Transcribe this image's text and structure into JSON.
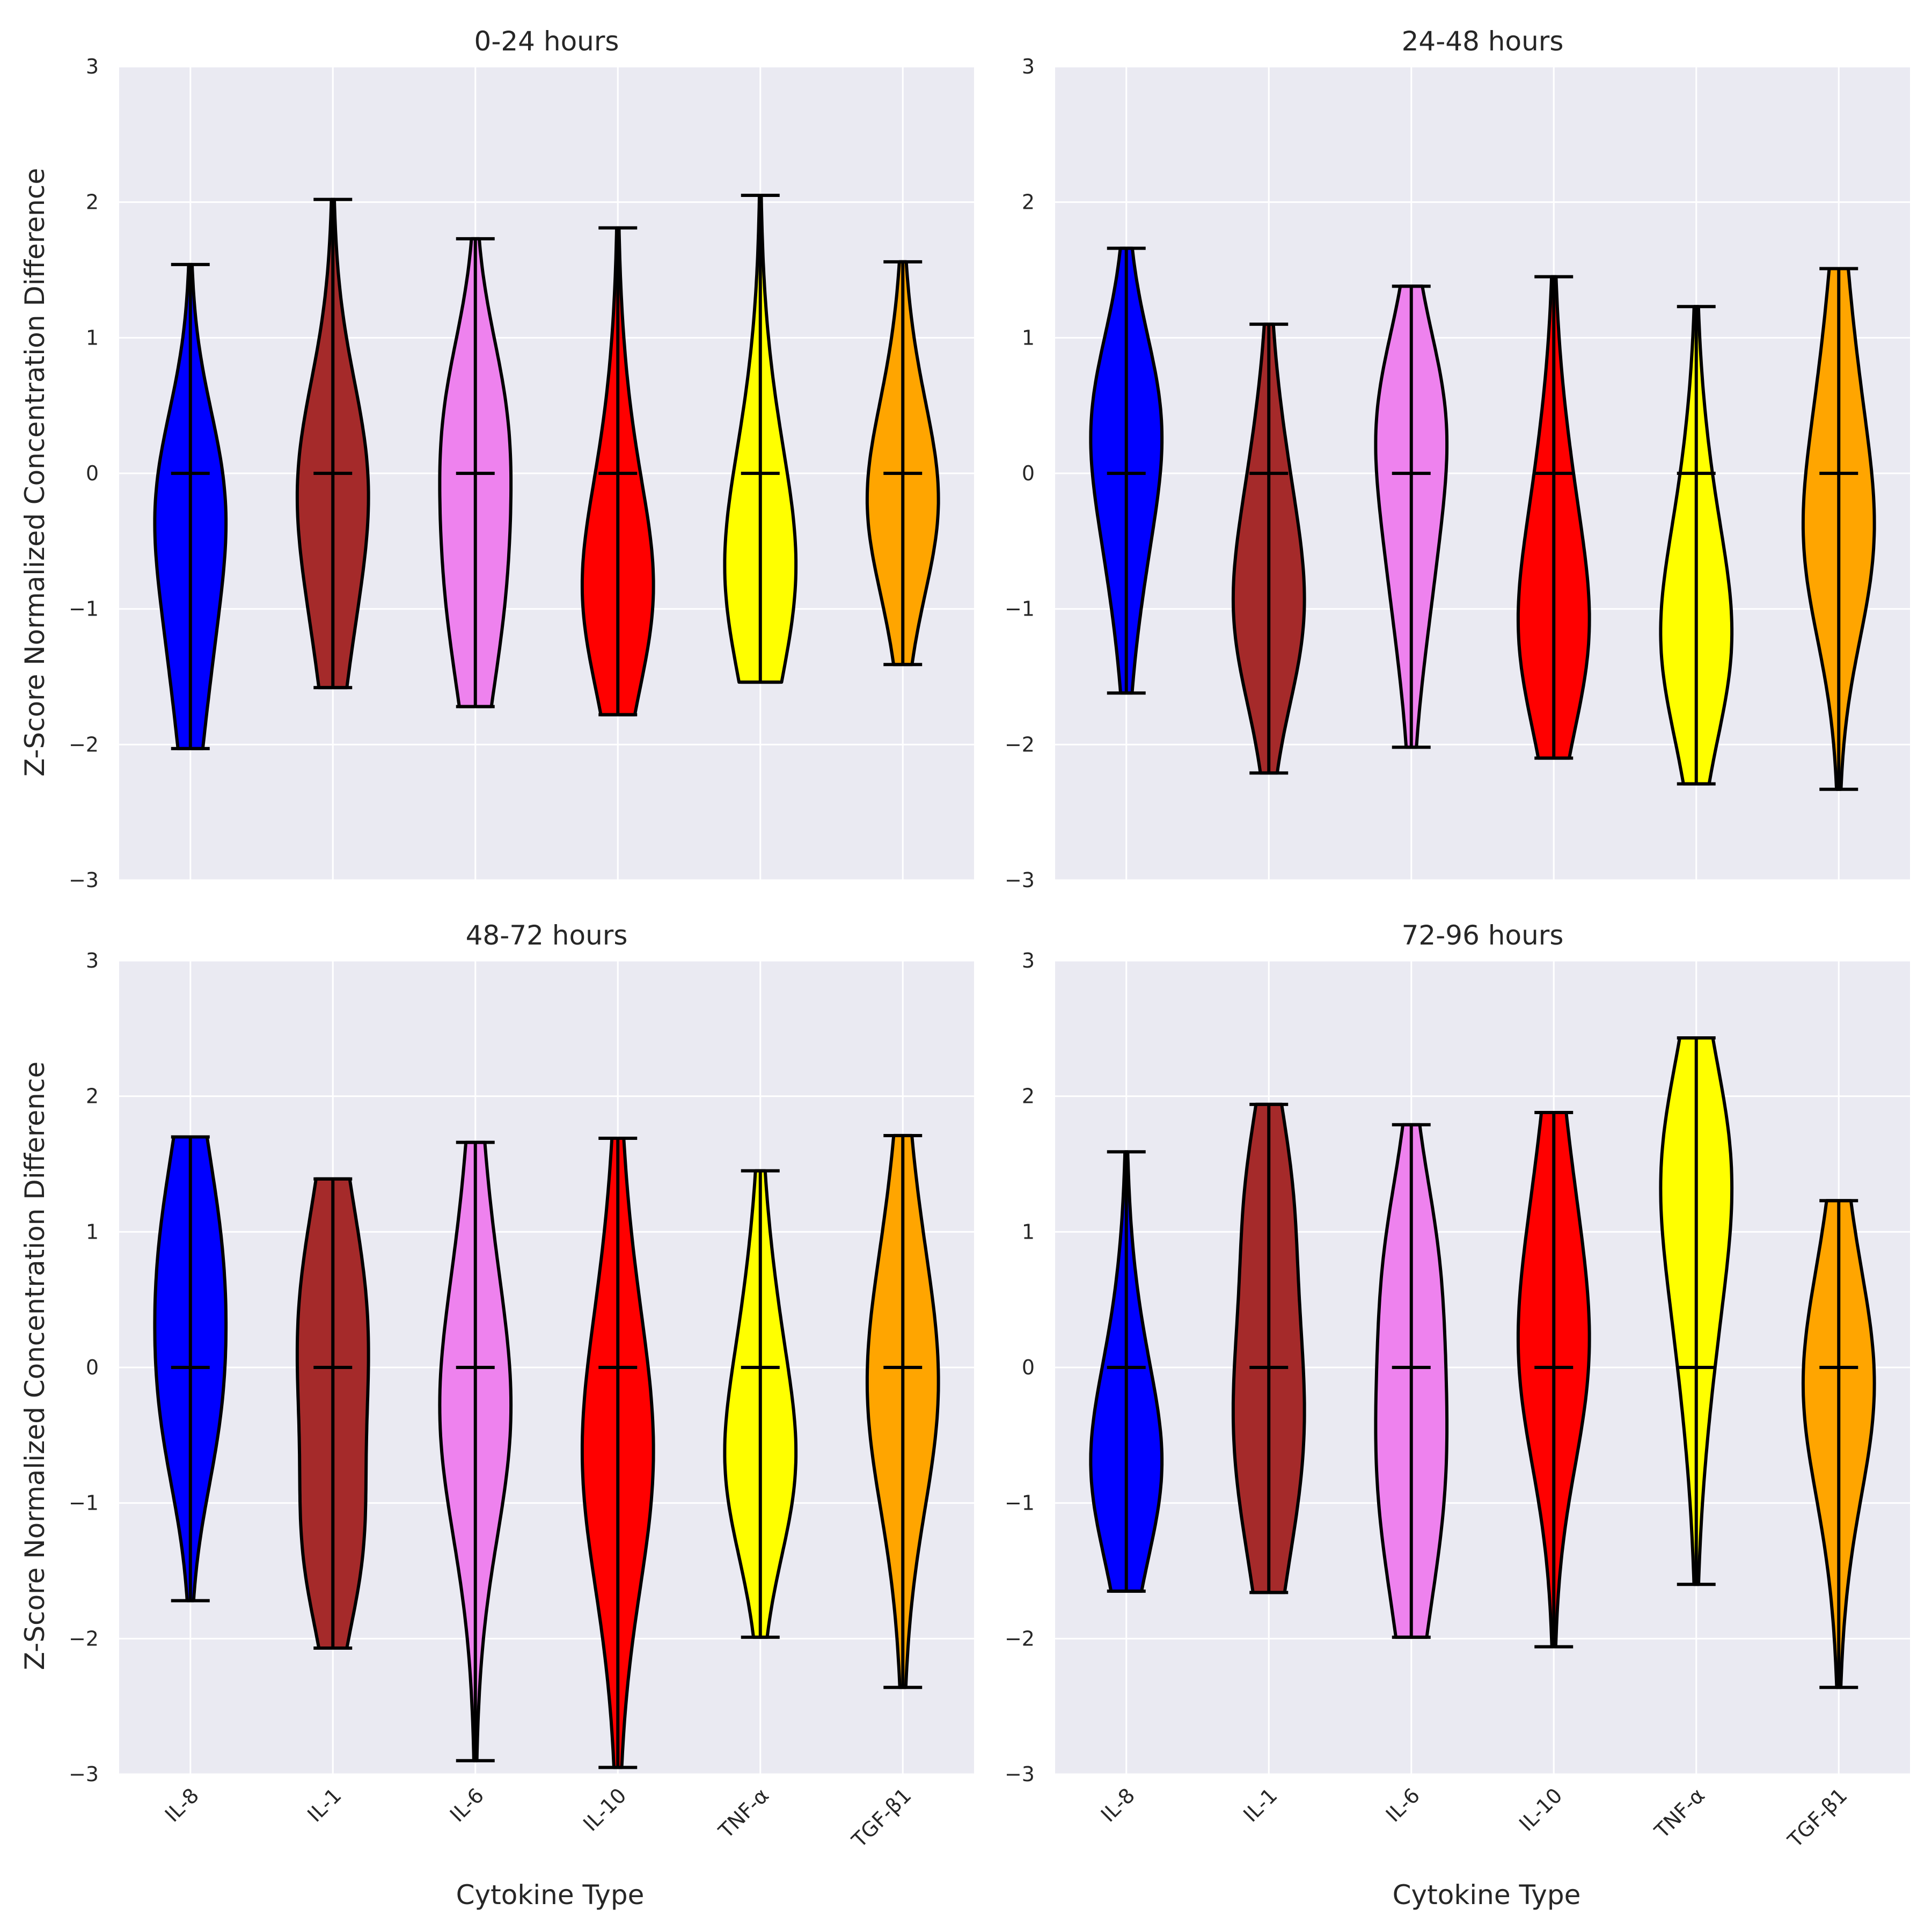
{
  "chart_data": {
    "type": "violin",
    "ylabel": "Z-Score Normalized Concentration Difference",
    "xlabel": "Cytokine Type",
    "ylim": [
      -3,
      3
    ],
    "yticks": [
      -3,
      -2,
      -1,
      0,
      1,
      2,
      3
    ],
    "categories": [
      "IL-8",
      "IL-1",
      "IL-6",
      "IL-10",
      "TNF-α",
      "TGF-β1"
    ],
    "colors": [
      "#0000ff",
      "#a52a2a",
      "#ee82ee",
      "#ff0000",
      "#ffff00",
      "#ffa500"
    ],
    "grid": true,
    "panels": [
      {
        "title": "0-24 hours",
        "violins": [
          {
            "category": "IL-8",
            "min": -2.03,
            "max": 1.54,
            "mean": 0.0
          },
          {
            "category": "IL-1",
            "min": -1.58,
            "max": 2.02,
            "mean": 0.0
          },
          {
            "category": "IL-6",
            "min": -1.72,
            "max": 1.73,
            "mean": 0.0
          },
          {
            "category": "IL-10",
            "min": -1.78,
            "max": 1.81,
            "mean": 0.0
          },
          {
            "category": "TNF-α",
            "min": -1.54,
            "max": 2.05,
            "mean": 0.0
          },
          {
            "category": "TGF-β1",
            "min": -1.41,
            "max": 1.56,
            "mean": 0.0
          }
        ]
      },
      {
        "title": "24-48 hours",
        "violins": [
          {
            "category": "IL-8",
            "min": -1.62,
            "max": 1.66,
            "mean": 0.0
          },
          {
            "category": "IL-1",
            "min": -2.21,
            "max": 1.1,
            "mean": 0.0
          },
          {
            "category": "IL-6",
            "min": -2.02,
            "max": 1.38,
            "mean": 0.0
          },
          {
            "category": "IL-10",
            "min": -2.1,
            "max": 1.45,
            "mean": 0.0
          },
          {
            "category": "TNF-α",
            "min": -2.29,
            "max": 1.23,
            "mean": 0.0
          },
          {
            "category": "TGF-β1",
            "min": -2.33,
            "max": 1.51,
            "mean": 0.0
          }
        ]
      },
      {
        "title": "48-72 hours",
        "violins": [
          {
            "category": "IL-8",
            "min": -1.72,
            "max": 1.7,
            "mean": 0.0
          },
          {
            "category": "IL-1",
            "min": -2.07,
            "max": 1.39,
            "mean": 0.0
          },
          {
            "category": "IL-6",
            "min": -2.9,
            "max": 1.66,
            "mean": 0.0
          },
          {
            "category": "IL-10",
            "min": -2.95,
            "max": 1.69,
            "mean": 0.0
          },
          {
            "category": "TNF-α",
            "min": -1.99,
            "max": 1.45,
            "mean": 0.0
          },
          {
            "category": "TGF-β1",
            "min": -2.36,
            "max": 1.71,
            "mean": 0.0
          }
        ]
      },
      {
        "title": "72-96 hours",
        "violins": [
          {
            "category": "IL-8",
            "min": -1.65,
            "max": 1.59,
            "mean": 0.0
          },
          {
            "category": "IL-1",
            "min": -1.66,
            "max": 1.94,
            "mean": 0.0
          },
          {
            "category": "IL-6",
            "min": -1.99,
            "max": 1.79,
            "mean": 0.0
          },
          {
            "category": "IL-10",
            "min": -2.06,
            "max": 1.88,
            "mean": 0.0
          },
          {
            "category": "TNF-α",
            "min": -1.6,
            "max": 2.43,
            "mean": 0.0
          },
          {
            "category": "TGF-β1",
            "min": -2.36,
            "max": 1.23,
            "mean": 0.0
          }
        ]
      }
    ]
  }
}
